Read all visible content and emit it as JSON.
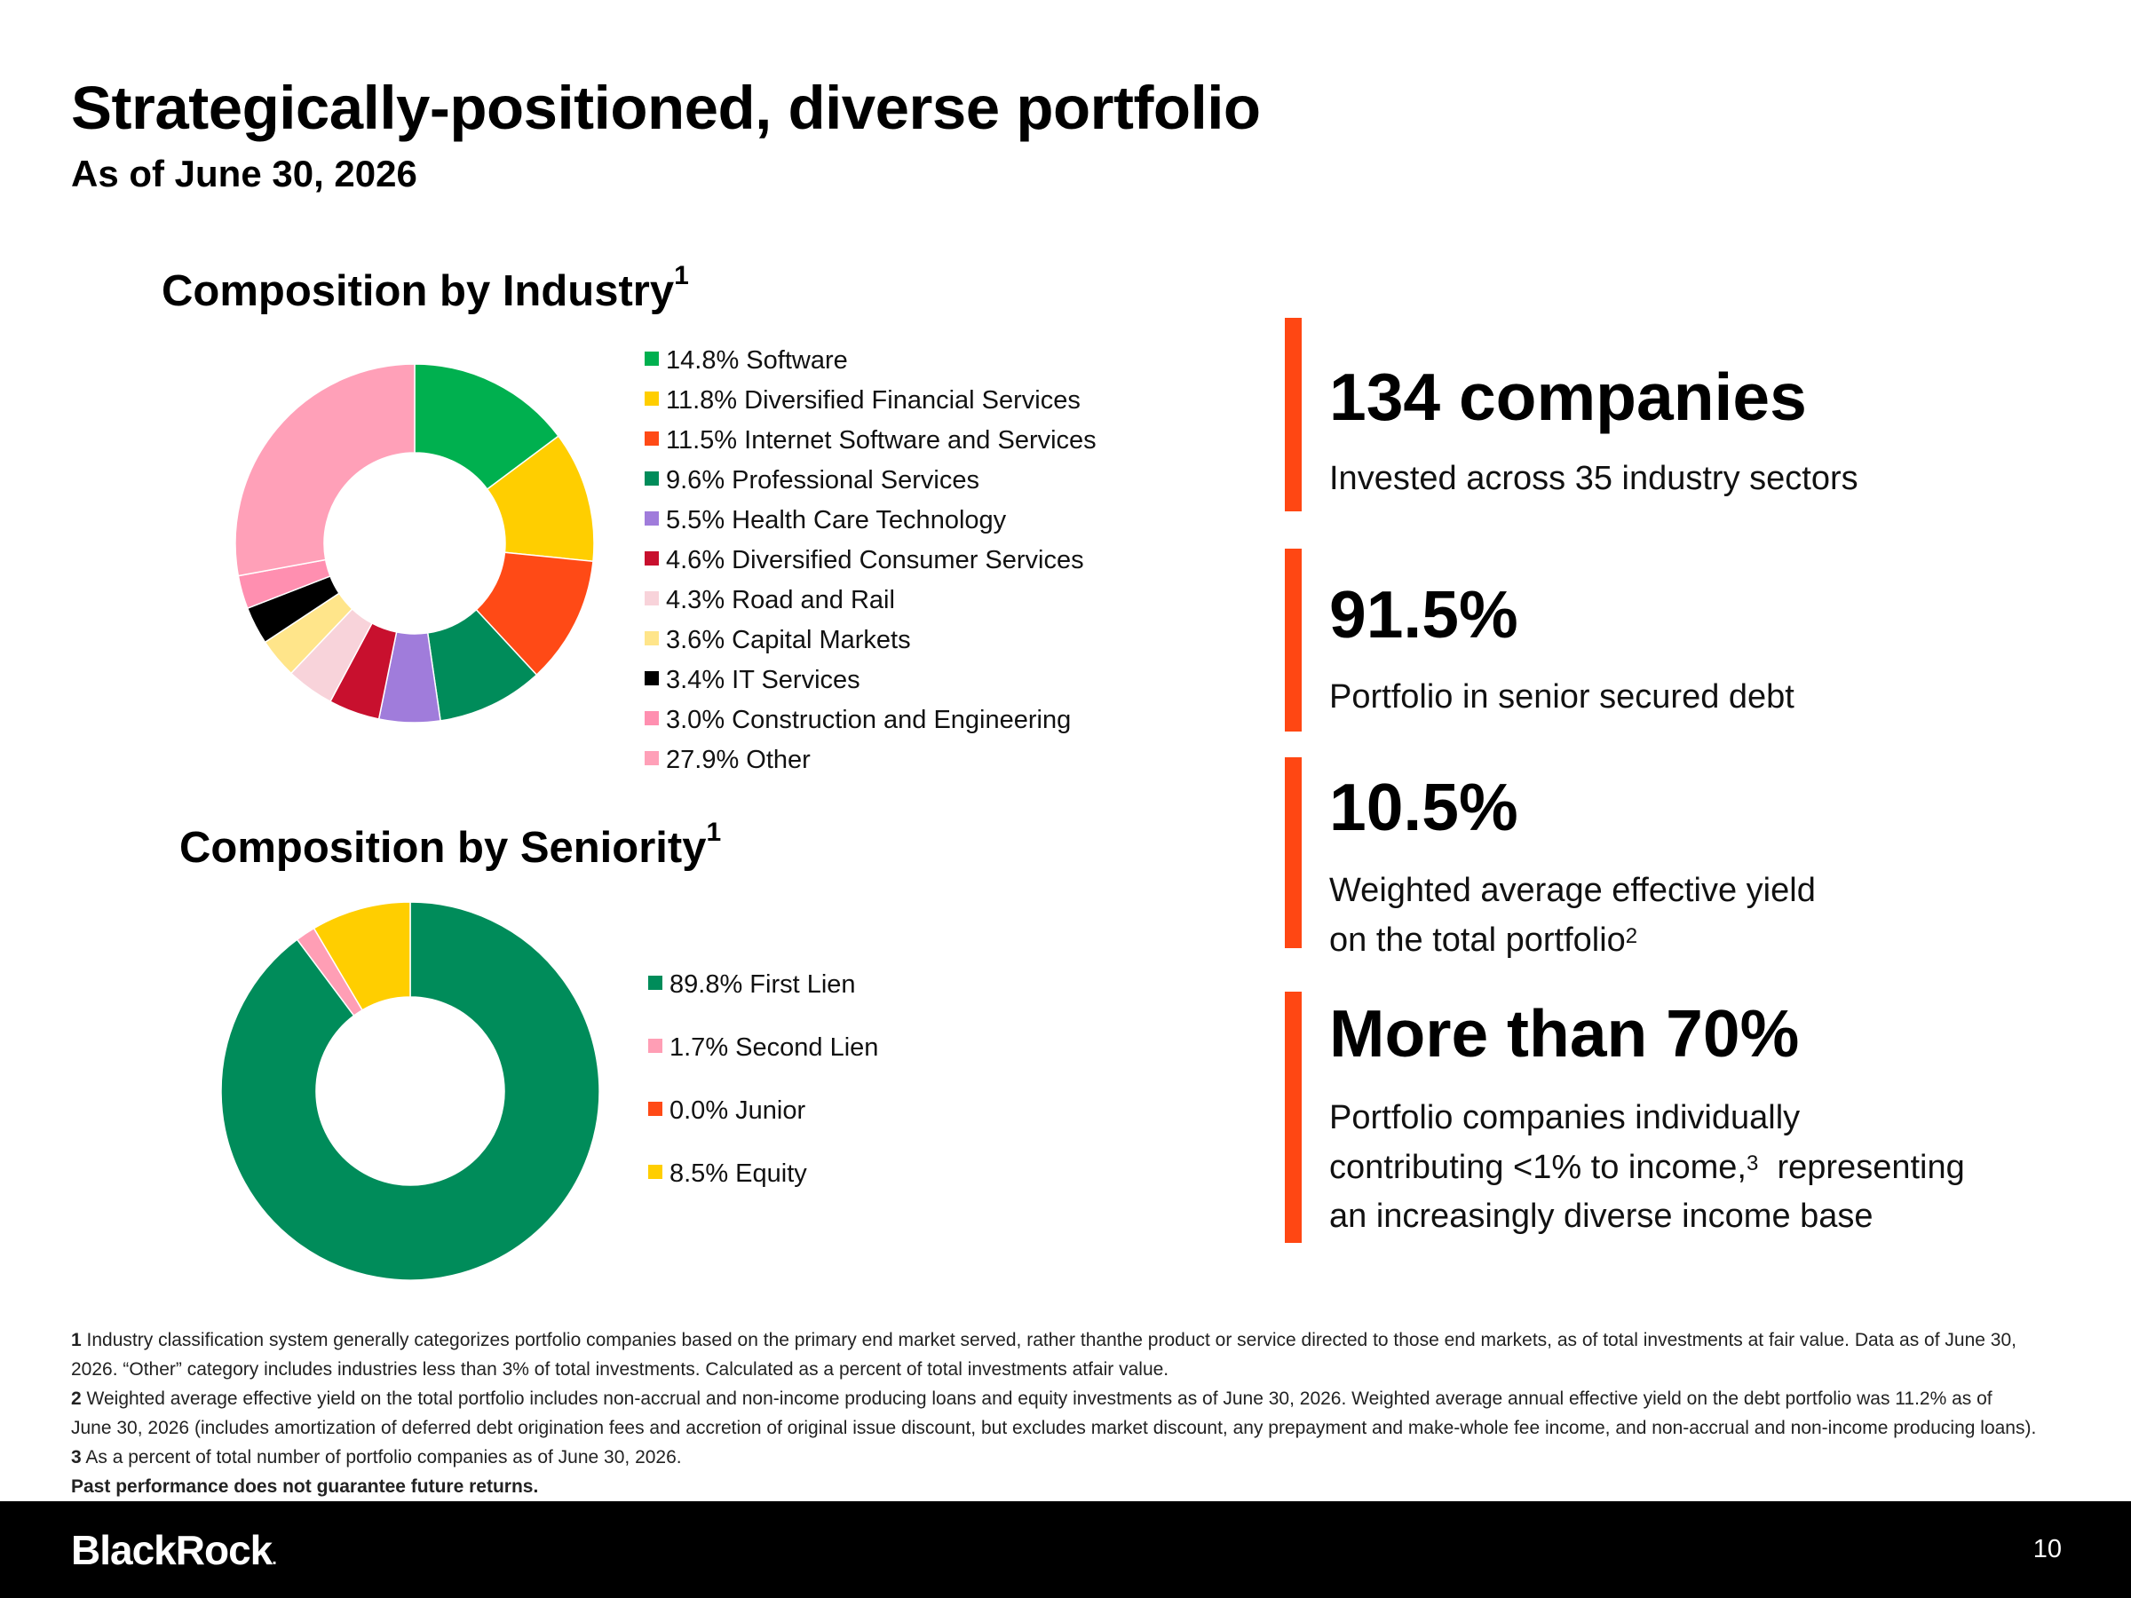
{
  "header": {
    "title": "Strategically-positioned, diverse portfolio",
    "subtitle": "As of June 30, 2026"
  },
  "sections": {
    "industry_title": "Composition by Industry",
    "industry_sup": "1",
    "seniority_title": "Composition by Seniority",
    "seniority_sup": "1"
  },
  "chart_data": [
    {
      "type": "pie",
      "donut": true,
      "title": "Composition by Industry",
      "unit": "%",
      "legend_position": "right",
      "slices": [
        {
          "label": "14.8% Software",
          "name": "Software",
          "value": 14.8,
          "color": "#00B04F"
        },
        {
          "label": "11.8% Diversified Financial Services",
          "name": "Diversified Financial Services",
          "value": 11.8,
          "color": "#FFCE00"
        },
        {
          "label": "11.5% Internet Software and Services",
          "name": "Internet Software and Services",
          "value": 11.5,
          "color": "#FF4A16"
        },
        {
          "label": "9.6% Professional Services",
          "name": "Professional Services",
          "value": 9.6,
          "color": "#008C5A"
        },
        {
          "label": "5.5% Health Care Technology",
          "name": "Health Care Technology",
          "value": 5.5,
          "color": "#A07CDB"
        },
        {
          "label": "4.6% Diversified Consumer Services",
          "name": "Diversified Consumer Services",
          "value": 4.6,
          "color": "#C8102E"
        },
        {
          "label": "4.3% Road and Rail",
          "name": "Road and Rail",
          "value": 4.3,
          "color": "#F8D3DA"
        },
        {
          "label": "3.6% Capital Markets",
          "name": "Capital Markets",
          "value": 3.6,
          "color": "#FFE58A"
        },
        {
          "label": "3.4% IT Services",
          "name": "IT Services",
          "value": 3.4,
          "color": "#000000"
        },
        {
          "label": "3.0% Construction and Engineering",
          "name": "Construction and Engineering",
          "value": 3.0,
          "color": "#FF8FB0"
        },
        {
          "label": "27.9% Other",
          "name": "Other",
          "value": 27.9,
          "color": "#FFA0B8"
        }
      ]
    },
    {
      "type": "pie",
      "donut": true,
      "title": "Composition by Seniority",
      "unit": "%",
      "legend_position": "right",
      "slices": [
        {
          "label": "89.8% First Lien",
          "name": "First Lien",
          "value": 89.8,
          "color": "#008C5A"
        },
        {
          "label": "1.7% Second Lien",
          "name": "Second Lien",
          "value": 1.7,
          "color": "#FF9EB5"
        },
        {
          "label": "0.0% Junior",
          "name": "Junior",
          "value": 0.0,
          "color": "#FF4A16"
        },
        {
          "label": "8.5% Equity",
          "name": "Equity",
          "value": 8.5,
          "color": "#FFCE00"
        }
      ]
    }
  ],
  "kpis": [
    {
      "value": "134 companies",
      "desc_lines": [
        "Invested across 35 industry sectors"
      ]
    },
    {
      "value": "91.5%",
      "desc_lines": [
        "Portfolio in senior secured debt"
      ]
    },
    {
      "value": "10.5%",
      "desc_lines": [
        "Weighted average effective yield",
        "on the total portfolio"
      ],
      "desc_sup": "2"
    },
    {
      "value": "More than 70%",
      "desc_lines": [
        "Portfolio companies individually",
        "contributing <1% to income,",
        "representing",
        "an increasingly diverse income base"
      ],
      "desc_sup": "3"
    }
  ],
  "footnotes": {
    "n1": "1",
    "f1_line1": "Industry classification system generally categorizes portfolio companies based on the primary end market served, rather thanthe product or service directed to those end markets, as of total investments at fair value. Data as of June 30,",
    "f1_line2": "2026. “Other” category includes industries less than 3% of total investments. Calculated as a percent of total investments atfair value.",
    "n2": "2",
    "f2_line1": "Weighted average effective yield on the total portfolio includes non-accrual and non-income producing loans and equity investments as of June 30, 2026. Weighted average annual effective yield on the debt portfolio was 11.2% as of",
    "f2_line2": "June 30, 2026 (includes amortization of deferred debt origination fees and accretion of original issue discount, but excludes market discount, any prepayment and make-whole fee income, and non-accrual and non-income producing loans).",
    "n3": "3",
    "f3_line1": "As a percent of total number of portfolio companies as of June 30, 2026.",
    "disclaimer": "Past performance does not guarantee future returns."
  },
  "footer": {
    "logo": "BlackRock",
    "logo_mark": ".",
    "page_number": "10"
  }
}
